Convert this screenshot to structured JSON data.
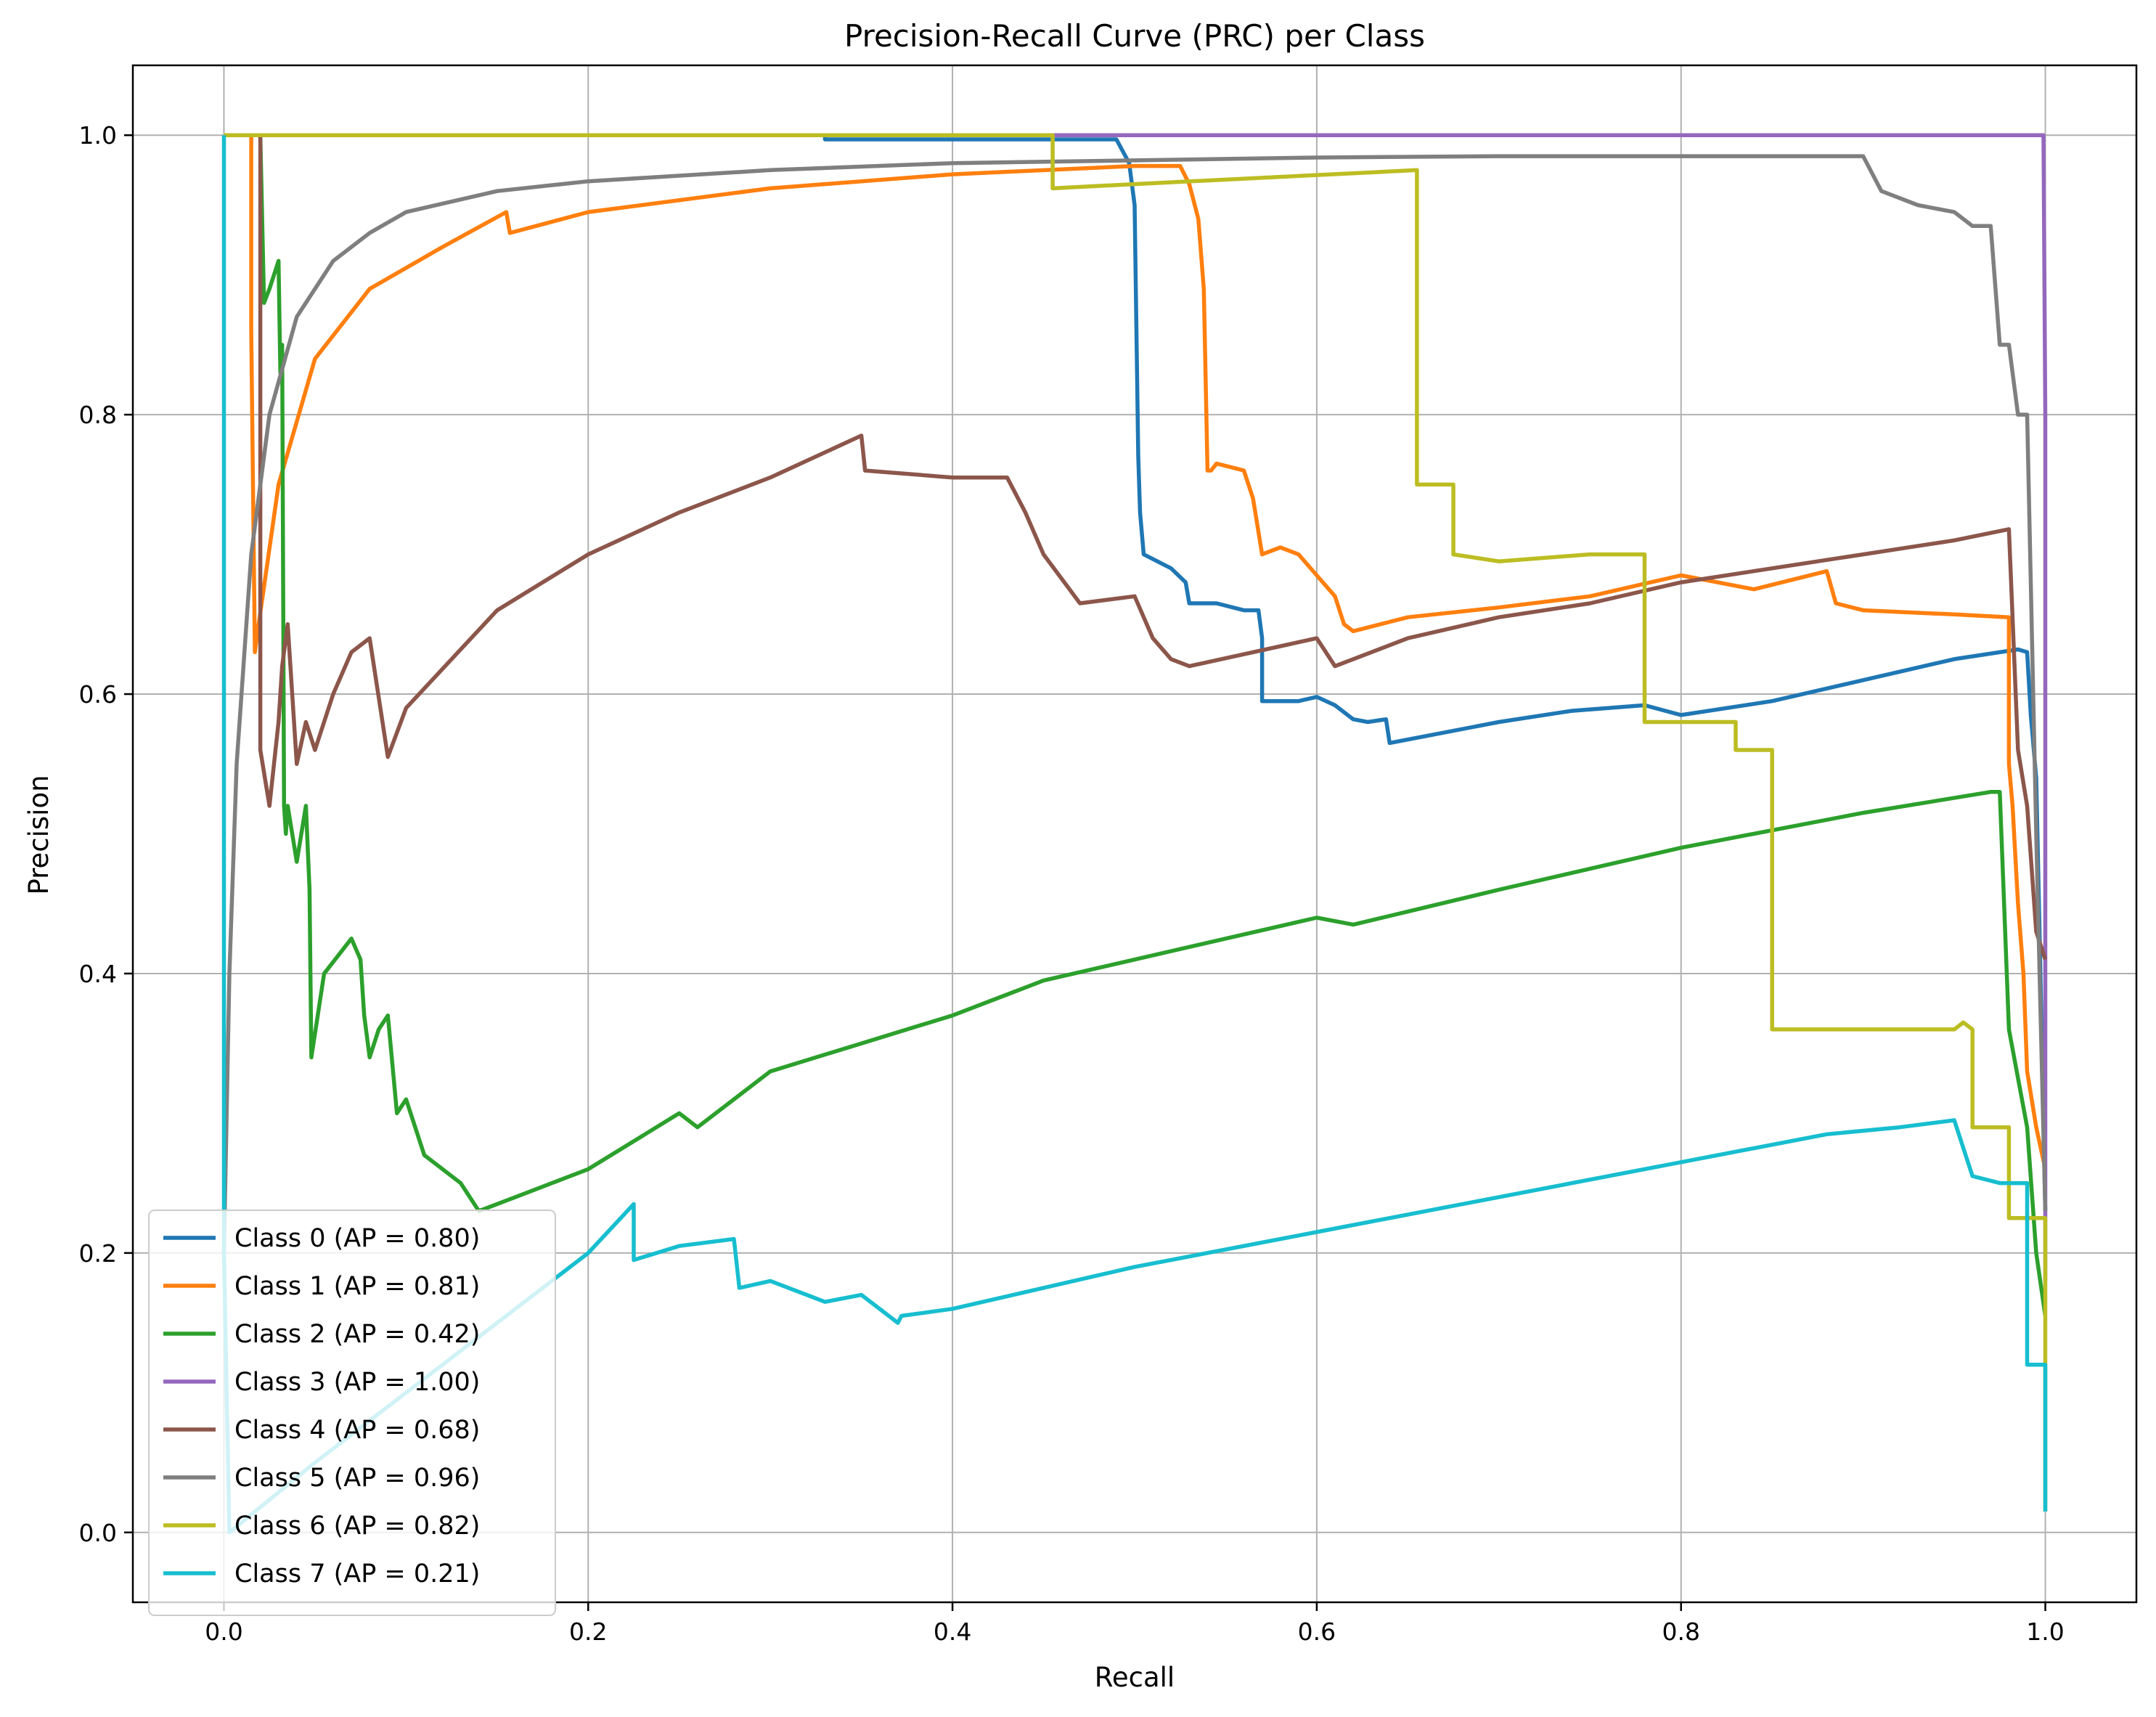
{
  "chart_data": {
    "type": "line",
    "title": "Precision-Recall Curve (PRC) per Class",
    "xlabel": "Recall",
    "ylabel": "Precision",
    "xlim": [
      -0.05,
      1.05
    ],
    "ylim": [
      -0.05,
      1.05
    ],
    "xticks": [
      "0.0",
      "0.2",
      "0.4",
      "0.6",
      "0.8",
      "1.0"
    ],
    "yticks": [
      "0.0",
      "0.2",
      "0.4",
      "0.6",
      "0.8",
      "1.0"
    ],
    "grid": true,
    "legend_position": "lower-left",
    "series": [
      {
        "name": "Class 0 (AP = 0.80)",
        "color": "#1f77b4",
        "x": [
          0.0,
          0.33,
          0.33,
          0.49,
          0.497,
          0.5,
          0.502,
          0.503,
          0.505,
          0.52,
          0.528,
          0.53,
          0.545,
          0.56,
          0.568,
          0.57,
          0.57,
          0.59,
          0.6,
          0.61,
          0.62,
          0.628,
          0.638,
          0.64,
          0.66,
          0.7,
          0.74,
          0.76,
          0.78,
          0.8,
          0.85,
          0.9,
          0.95,
          0.985,
          0.99,
          0.992,
          0.995,
          0.997,
          1.0
        ],
        "y": [
          1.0,
          1.0,
          0.997,
          0.997,
          0.98,
          0.95,
          0.77,
          0.73,
          0.7,
          0.69,
          0.68,
          0.665,
          0.665,
          0.66,
          0.66,
          0.64,
          0.595,
          0.595,
          0.598,
          0.592,
          0.582,
          0.58,
          0.582,
          0.565,
          0.57,
          0.58,
          0.588,
          0.59,
          0.592,
          0.585,
          0.595,
          0.61,
          0.625,
          0.632,
          0.63,
          0.585,
          0.54,
          0.42,
          0.23
        ]
      },
      {
        "name": "Class 1 (AP = 0.81)",
        "color": "#ff7f0e",
        "x": [
          0.0,
          0.015,
          0.015,
          0.017,
          0.018,
          0.03,
          0.05,
          0.08,
          0.12,
          0.155,
          0.157,
          0.2,
          0.3,
          0.4,
          0.5,
          0.525,
          0.53,
          0.535,
          0.538,
          0.54,
          0.542,
          0.545,
          0.56,
          0.565,
          0.57,
          0.58,
          0.59,
          0.6,
          0.61,
          0.615,
          0.62,
          0.65,
          0.7,
          0.75,
          0.8,
          0.82,
          0.84,
          0.88,
          0.885,
          0.9,
          0.95,
          0.98,
          0.98,
          0.982,
          0.985,
          0.988,
          0.99,
          0.995,
          1.0
        ],
        "y": [
          1.0,
          1.0,
          0.86,
          0.63,
          0.64,
          0.75,
          0.84,
          0.89,
          0.92,
          0.945,
          0.93,
          0.945,
          0.962,
          0.972,
          0.978,
          0.978,
          0.965,
          0.94,
          0.89,
          0.76,
          0.76,
          0.765,
          0.76,
          0.74,
          0.7,
          0.705,
          0.7,
          0.685,
          0.67,
          0.65,
          0.645,
          0.655,
          0.662,
          0.67,
          0.685,
          0.68,
          0.675,
          0.688,
          0.665,
          0.66,
          0.657,
          0.655,
          0.55,
          0.52,
          0.45,
          0.4,
          0.33,
          0.29,
          0.26
        ]
      },
      {
        "name": "Class 2 (AP = 0.42)",
        "color": "#2ca02c",
        "x": [
          0.0,
          0.02,
          0.022,
          0.025,
          0.03,
          0.031,
          0.032,
          0.033,
          0.034,
          0.035,
          0.04,
          0.045,
          0.047,
          0.048,
          0.055,
          0.07,
          0.075,
          0.077,
          0.08,
          0.085,
          0.09,
          0.095,
          0.1,
          0.11,
          0.13,
          0.14,
          0.16,
          0.2,
          0.25,
          0.26,
          0.3,
          0.35,
          0.4,
          0.45,
          0.5,
          0.55,
          0.6,
          0.62,
          0.7,
          0.8,
          0.9,
          0.97,
          0.975,
          0.98,
          0.99,
          0.995,
          1.0
        ],
        "y": [
          1.0,
          1.0,
          0.88,
          0.89,
          0.91,
          0.83,
          0.85,
          0.52,
          0.5,
          0.52,
          0.48,
          0.52,
          0.46,
          0.34,
          0.4,
          0.425,
          0.41,
          0.37,
          0.34,
          0.36,
          0.37,
          0.3,
          0.31,
          0.27,
          0.25,
          0.23,
          0.24,
          0.26,
          0.3,
          0.29,
          0.33,
          0.35,
          0.37,
          0.395,
          0.41,
          0.425,
          0.44,
          0.435,
          0.46,
          0.49,
          0.515,
          0.53,
          0.53,
          0.36,
          0.29,
          0.2,
          0.155
        ]
      },
      {
        "name": "Class 3 (AP = 1.00)",
        "color": "#9467bd",
        "x": [
          0.0,
          0.999,
          1.0,
          1.0
        ],
        "y": [
          1.0,
          1.0,
          0.8,
          0.18
        ]
      },
      {
        "name": "Class 4 (AP = 0.68)",
        "color": "#8c564b",
        "x": [
          0.0,
          0.02,
          0.02,
          0.025,
          0.03,
          0.032,
          0.035,
          0.04,
          0.045,
          0.05,
          0.06,
          0.07,
          0.08,
          0.09,
          0.1,
          0.15,
          0.2,
          0.25,
          0.3,
          0.35,
          0.352,
          0.4,
          0.43,
          0.44,
          0.45,
          0.47,
          0.5,
          0.51,
          0.52,
          0.53,
          0.6,
          0.61,
          0.65,
          0.7,
          0.75,
          0.8,
          0.85,
          0.9,
          0.95,
          0.98,
          0.985,
          0.99,
          0.995,
          1.0
        ],
        "y": [
          1.0,
          1.0,
          0.56,
          0.52,
          0.58,
          0.62,
          0.65,
          0.55,
          0.58,
          0.56,
          0.6,
          0.63,
          0.64,
          0.555,
          0.59,
          0.66,
          0.7,
          0.73,
          0.755,
          0.785,
          0.76,
          0.755,
          0.755,
          0.73,
          0.7,
          0.665,
          0.67,
          0.64,
          0.625,
          0.62,
          0.64,
          0.62,
          0.64,
          0.655,
          0.665,
          0.68,
          0.69,
          0.7,
          0.71,
          0.718,
          0.56,
          0.52,
          0.43,
          0.41
        ]
      },
      {
        "name": "Class 5 (AP = 0.96)",
        "color": "#7f7f7f",
        "x": [
          0.0,
          0.003,
          0.007,
          0.015,
          0.025,
          0.04,
          0.06,
          0.08,
          0.1,
          0.15,
          0.2,
          0.3,
          0.4,
          0.5,
          0.6,
          0.7,
          0.8,
          0.9,
          0.91,
          0.92,
          0.93,
          0.95,
          0.96,
          0.97,
          0.975,
          0.98,
          0.985,
          0.99,
          0.995,
          1.0
        ],
        "y": [
          0.2,
          0.4,
          0.55,
          0.7,
          0.8,
          0.87,
          0.91,
          0.93,
          0.945,
          0.96,
          0.967,
          0.975,
          0.98,
          0.982,
          0.984,
          0.985,
          0.985,
          0.985,
          0.96,
          0.955,
          0.95,
          0.945,
          0.935,
          0.935,
          0.85,
          0.85,
          0.8,
          0.8,
          0.5,
          0.23
        ]
      },
      {
        "name": "Class 6 (AP = 0.82)",
        "color": "#bcbd22",
        "x": [
          0.0,
          0.455,
          0.455,
          0.5,
          0.655,
          0.655,
          0.675,
          0.675,
          0.7,
          0.75,
          0.78,
          0.78,
          0.83,
          0.83,
          0.85,
          0.85,
          0.88,
          0.92,
          0.95,
          0.955,
          0.96,
          0.96,
          0.98,
          0.98,
          1.0,
          1.0
        ],
        "y": [
          1.0,
          1.0,
          0.962,
          0.965,
          0.975,
          0.75,
          0.75,
          0.7,
          0.695,
          0.7,
          0.7,
          0.58,
          0.58,
          0.56,
          0.56,
          0.36,
          0.36,
          0.36,
          0.36,
          0.365,
          0.36,
          0.29,
          0.29,
          0.225,
          0.225,
          0.015
        ]
      },
      {
        "name": "Class 7 (AP = 0.21)",
        "color": "#17becf",
        "x": [
          0.0,
          0.0,
          0.003,
          0.05,
          0.1,
          0.15,
          0.2,
          0.225,
          0.225,
          0.25,
          0.28,
          0.283,
          0.3,
          0.33,
          0.35,
          0.37,
          0.372,
          0.4,
          0.5,
          0.6,
          0.7,
          0.8,
          0.88,
          0.92,
          0.95,
          0.96,
          0.975,
          0.99,
          0.99,
          1.0,
          1.0
        ],
        "y": [
          1.0,
          0.2,
          0.0,
          0.05,
          0.1,
          0.15,
          0.2,
          0.235,
          0.195,
          0.205,
          0.21,
          0.175,
          0.18,
          0.165,
          0.17,
          0.15,
          0.155,
          0.16,
          0.19,
          0.215,
          0.24,
          0.265,
          0.285,
          0.29,
          0.295,
          0.255,
          0.25,
          0.25,
          0.12,
          0.12,
          0.015
        ]
      }
    ]
  }
}
